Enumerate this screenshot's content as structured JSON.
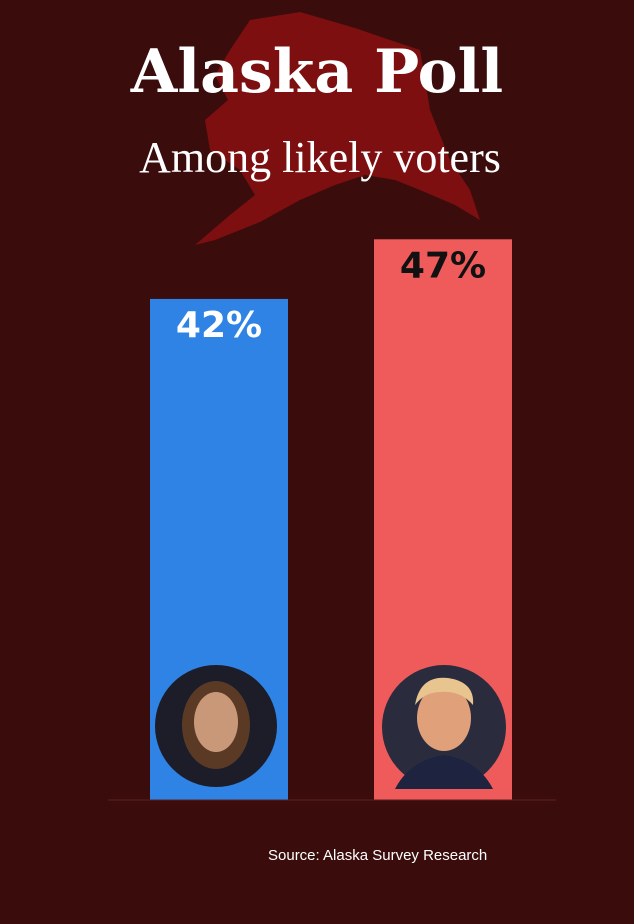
{
  "chart_data": {
    "type": "bar",
    "title": "Alaska Poll",
    "subtitle": "Among likely voters",
    "categories": [
      null,
      null
    ],
    "values": [
      42,
      47
    ],
    "value_labels": [
      "42%",
      "47%"
    ],
    "colors": [
      "#2f83e4",
      "#ef5a5a"
    ],
    "source": "Source: Alaska Survey Research"
  }
}
